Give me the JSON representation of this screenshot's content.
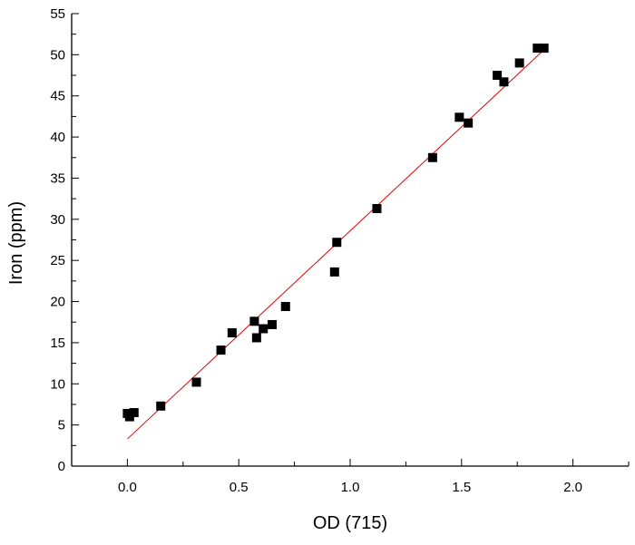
{
  "chart_data": {
    "type": "scatter",
    "title": "",
    "xlabel": "OD (715)",
    "ylabel": "Iron (ppm)",
    "xlim": [
      -0.25,
      2.25
    ],
    "ylim": [
      0,
      55
    ],
    "x_ticks": [
      "0.0",
      "0.5",
      "1.0",
      "1.5",
      "2.0"
    ],
    "y_ticks": [
      "0",
      "5",
      "10",
      "15",
      "20",
      "25",
      "30",
      "35",
      "40",
      "45",
      "50",
      "55"
    ],
    "grid": false,
    "legend": "none",
    "marker_color": "#000000",
    "fit_line_color": "#e00000",
    "series": [
      {
        "marker": "square",
        "points": [
          {
            "x": 0.0,
            "y": 6.4
          },
          {
            "x": 0.01,
            "y": 6.0
          },
          {
            "x": 0.03,
            "y": 6.5
          },
          {
            "x": 0.15,
            "y": 7.3
          },
          {
            "x": 0.31,
            "y": 10.2
          },
          {
            "x": 0.42,
            "y": 14.1
          },
          {
            "x": 0.47,
            "y": 16.2
          },
          {
            "x": 0.57,
            "y": 17.6
          },
          {
            "x": 0.58,
            "y": 15.6
          },
          {
            "x": 0.61,
            "y": 16.7
          },
          {
            "x": 0.65,
            "y": 17.2
          },
          {
            "x": 0.71,
            "y": 19.4
          },
          {
            "x": 0.93,
            "y": 23.6
          },
          {
            "x": 0.94,
            "y": 27.2
          },
          {
            "x": 1.12,
            "y": 31.3
          },
          {
            "x": 1.37,
            "y": 37.5
          },
          {
            "x": 1.49,
            "y": 42.4
          },
          {
            "x": 1.53,
            "y": 41.7
          },
          {
            "x": 1.66,
            "y": 47.5
          },
          {
            "x": 1.69,
            "y": 46.7
          },
          {
            "x": 1.76,
            "y": 49.0
          },
          {
            "x": 1.84,
            "y": 50.8
          },
          {
            "x": 1.87,
            "y": 50.8
          }
        ]
      }
    ],
    "fit_line": {
      "x": [
        0.0,
        1.87
      ],
      "y": [
        3.3,
        50.6
      ]
    }
  }
}
